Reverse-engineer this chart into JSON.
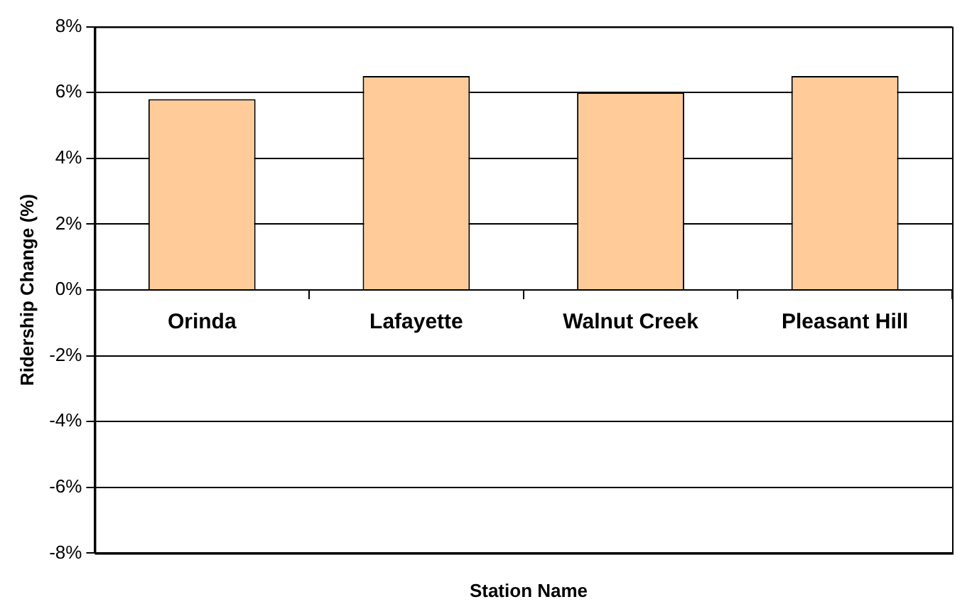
{
  "chart_data": {
    "type": "bar",
    "xlabel": "Station Name",
    "ylabel": "Ridership Change (%)",
    "categories": [
      "Orinda",
      "Lafayette",
      "Walnut Creek",
      "Pleasant Hill"
    ],
    "values": [
      5.8,
      6.5,
      6.0,
      6.5
    ],
    "color": "#ffcc99",
    "ylim": [
      -8,
      8
    ],
    "yticks": [
      {
        "value": -8,
        "label": "-8%"
      },
      {
        "value": -6,
        "label": "-6%"
      },
      {
        "value": -4,
        "label": "-4%"
      },
      {
        "value": -2,
        "label": "-2%"
      },
      {
        "value": 0,
        "label": "0%"
      },
      {
        "value": 2,
        "label": "2%"
      },
      {
        "value": 4,
        "label": "4%"
      },
      {
        "value": 6,
        "label": "6%"
      },
      {
        "value": 8,
        "label": "8%"
      }
    ],
    "grid": "y",
    "legend": false
  }
}
